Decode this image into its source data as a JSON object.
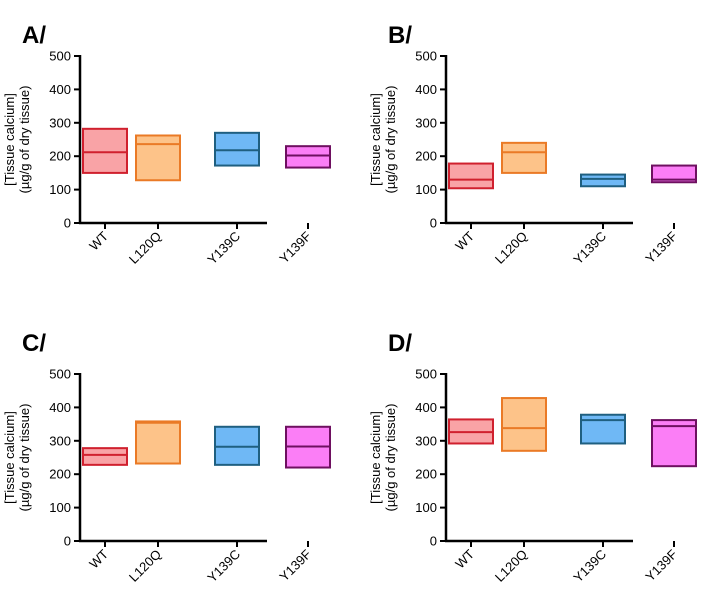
{
  "colors": {
    "WT": {
      "fill": "#F9A3A6",
      "stroke": "#D0202E"
    },
    "L120Q": {
      "fill": "#FDC389",
      "stroke": "#EA7A26"
    },
    "Y139C": {
      "fill": "#6FB8F5",
      "stroke": "#1F5F80"
    },
    "Y139F": {
      "fill": "#FB7EF6",
      "stroke": "#6E1060"
    }
  },
  "chart_data": [
    {
      "panel": "A/",
      "type": "box",
      "categories": [
        "WT",
        "L120Q",
        "Y139C",
        "Y139F"
      ],
      "ylabel_lines": [
        "[Tissue calcium]",
        "(µg/g of dry tissue)"
      ],
      "ylim": [
        0,
        500
      ],
      "yticks": [
        "0",
        "100",
        "200",
        "300",
        "400",
        "500"
      ],
      "boxes": [
        {
          "min": 150,
          "median": 212,
          "max": 282
        },
        {
          "min": 128,
          "median": 236,
          "max": 262
        },
        {
          "min": 172,
          "median": 218,
          "max": 270
        },
        {
          "min": 166,
          "median": 202,
          "max": 230
        }
      ]
    },
    {
      "panel": "B/",
      "type": "box",
      "categories": [
        "WT",
        "L120Q",
        "Y139C",
        "Y139F"
      ],
      "ylabel_lines": [
        "[Tissue calcium]",
        "(µg/g of dry tissue)"
      ],
      "ylim": [
        0,
        500
      ],
      "yticks": [
        "0",
        "100",
        "200",
        "300",
        "400",
        "500"
      ],
      "boxes": [
        {
          "min": 104,
          "median": 130,
          "max": 178
        },
        {
          "min": 150,
          "median": 212,
          "max": 240
        },
        {
          "min": 110,
          "median": 132,
          "max": 145
        },
        {
          "min": 122,
          "median": 130,
          "max": 172
        }
      ]
    },
    {
      "panel": "C/",
      "type": "box",
      "categories": [
        "WT",
        "L120Q",
        "Y139C",
        "Y139F"
      ],
      "ylabel_lines": [
        "[Tissue calcium]",
        "(µg/g of dry tissue)"
      ],
      "ylim": [
        0,
        500
      ],
      "yticks": [
        "0",
        "100",
        "200",
        "300",
        "400",
        "500"
      ],
      "boxes": [
        {
          "min": 228,
          "median": 258,
          "max": 278
        },
        {
          "min": 232,
          "median": 354,
          "max": 358
        },
        {
          "min": 228,
          "median": 282,
          "max": 342
        },
        {
          "min": 220,
          "median": 283,
          "max": 342
        }
      ]
    },
    {
      "panel": "D/",
      "type": "box",
      "categories": [
        "WT",
        "L120Q",
        "Y139C",
        "Y139F"
      ],
      "ylabel_lines": [
        "[Tissue calcium]",
        "(µg/g of dry tissue)"
      ],
      "ylim": [
        0,
        500
      ],
      "yticks": [
        "0",
        "100",
        "200",
        "300",
        "400",
        "500"
      ],
      "boxes": [
        {
          "min": 292,
          "median": 326,
          "max": 364
        },
        {
          "min": 270,
          "median": 338,
          "max": 428
        },
        {
          "min": 292,
          "median": 362,
          "max": 378
        },
        {
          "min": 224,
          "median": 344,
          "max": 362
        }
      ]
    }
  ]
}
